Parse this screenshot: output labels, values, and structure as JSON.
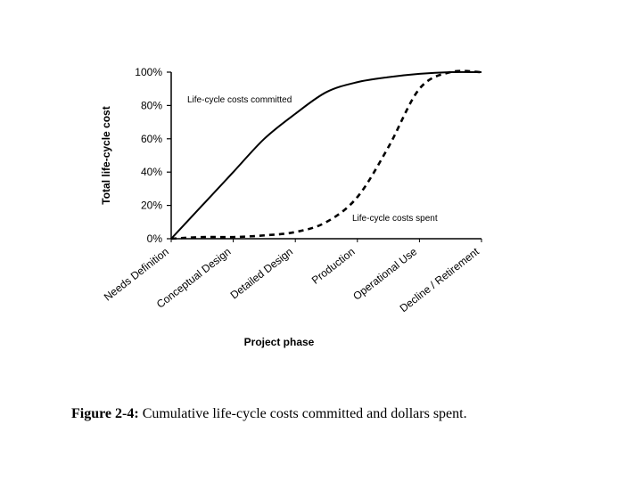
{
  "chart_data": {
    "type": "line",
    "ylabel": "Total life-cycle cost",
    "xlabel": "Project phase",
    "yticks": [
      "0%",
      "20%",
      "40%",
      "60%",
      "80%",
      "100%"
    ],
    "ylim": [
      0,
      100
    ],
    "categories": [
      "Needs Definition",
      "Conceptual Design",
      "Detailed Design",
      "Production",
      "Operational Use",
      "Decline / Retirement"
    ],
    "grid": false,
    "series": [
      {
        "name": "Life-cycle costs committed",
        "style": "solid",
        "color": "#000000",
        "x": [
          0,
          0.5,
          1,
          1.5,
          2,
          2.5,
          3,
          3.5,
          4,
          4.5,
          5
        ],
        "y": [
          0,
          20,
          40,
          60,
          75,
          88,
          94,
          97,
          99,
          100,
          100
        ]
      },
      {
        "name": "Life-cycle costs spent",
        "style": "dashed",
        "color": "#000000",
        "x": [
          0,
          0.5,
          1,
          1.5,
          2,
          2.5,
          3,
          3.5,
          4,
          4.5,
          5
        ],
        "y": [
          0,
          1,
          1,
          2,
          4,
          10,
          25,
          55,
          90,
          100,
          100
        ]
      }
    ],
    "annotations": [
      {
        "text": "Life-cycle costs committed",
        "series": 0
      },
      {
        "text": "Life-cycle costs spent",
        "series": 1
      }
    ]
  },
  "caption": {
    "label": "Figure 2-4:",
    "text": "Cumulative life-cycle costs committed and dollars spent."
  }
}
